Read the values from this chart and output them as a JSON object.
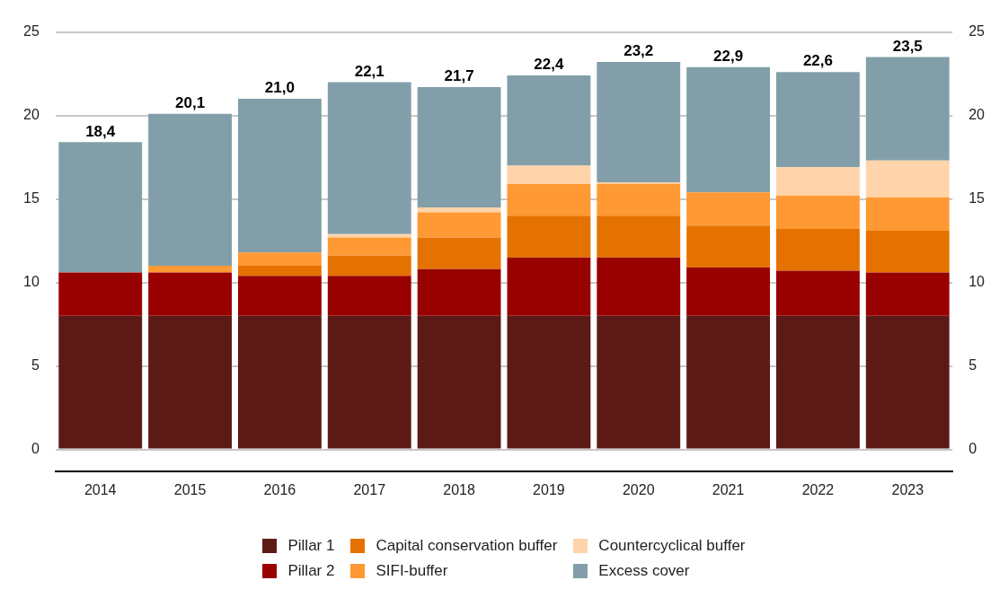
{
  "chart_data": {
    "type": "bar",
    "stacked": true,
    "categories": [
      "2014",
      "2015",
      "2016",
      "2017",
      "2018",
      "2019",
      "2020",
      "2021",
      "2022",
      "2023"
    ],
    "series": [
      {
        "name": "Pillar 1",
        "color": "#5c1a17",
        "values": [
          8.0,
          8.0,
          8.0,
          8.0,
          8.0,
          8.0,
          8.0,
          8.0,
          8.0,
          8.0
        ]
      },
      {
        "name": "Pillar 2",
        "color": "#990000",
        "values": [
          2.6,
          2.6,
          2.4,
          2.4,
          2.8,
          3.5,
          3.5,
          2.9,
          2.7,
          2.6
        ]
      },
      {
        "name": "Capital conservation buffer",
        "color": "#e57200",
        "values": [
          null,
          null,
          0.6,
          1.2,
          1.9,
          2.5,
          2.5,
          2.5,
          2.5,
          2.5
        ]
      },
      {
        "name": "SIFI-buffer",
        "color": "#ff9933",
        "values": [
          null,
          0.4,
          0.8,
          1.1,
          1.5,
          1.9,
          1.9,
          2.0,
          2.0,
          2.0
        ]
      },
      {
        "name": "Countercyclical buffer",
        "color": "#ffd4aa",
        "values": [
          null,
          null,
          null,
          0.2,
          0.3,
          1.1,
          0.1,
          null,
          1.7,
          2.2
        ]
      },
      {
        "name": "Excess cover",
        "color": "#829fa9",
        "values": [
          7.8,
          9.1,
          9.2,
          9.1,
          7.2,
          5.4,
          7.2,
          7.5,
          5.7,
          6.2
        ]
      }
    ],
    "totals": [
      "18,4",
      "20,1",
      "21,0",
      "22,1",
      "21,7",
      "22,4",
      "23,2",
      "22,9",
      "22,6",
      "23,5"
    ],
    "ylim": [
      -1.3,
      25
    ],
    "yticks": [
      0,
      5,
      10,
      15,
      20,
      25
    ],
    "y2lim": [
      -1.3,
      25
    ],
    "y2ticks": [
      0,
      5,
      10,
      15,
      20,
      25
    ],
    "grid": "y",
    "legend": "bottom"
  }
}
